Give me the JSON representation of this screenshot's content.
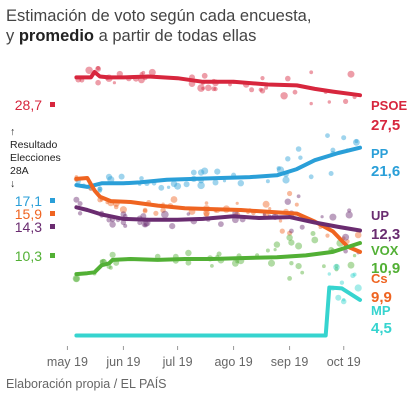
{
  "header": {
    "title_line1": "Estimación de voto según cada encuesta,",
    "title_pre": "y ",
    "title_bold": "promedio",
    "title_post": " a partir de todas ellas"
  },
  "source": "Elaboración propia / EL PAÍS",
  "result_note": {
    "arrow_up": "↑",
    "line1": "Resultado",
    "line2": "Elecciones",
    "line3": "28A",
    "arrow_down": "↓"
  },
  "chart_data": {
    "type": "line",
    "x_axis": {
      "ticks": [
        "may 19",
        "jun 19",
        "jul 19",
        "ago 19",
        "sep 19",
        "oct 19"
      ],
      "range": [
        "2019-04-28",
        "2019-10-10"
      ]
    },
    "y_axis": {
      "range": [
        0,
        31
      ]
    },
    "election_results": [
      {
        "party": "PSOE",
        "label": "28,7",
        "value": 28.7,
        "color": "#d7263d"
      },
      {
        "party": "PP",
        "label": "17,1",
        "value": 17.1,
        "color": "#2a9fd8"
      },
      {
        "party": "Cs",
        "label": "15,9",
        "value": 15.9,
        "color": "#ef6421"
      },
      {
        "party": "UP",
        "label": "14,3",
        "value": 14.3,
        "color": "#6a2c70"
      },
      {
        "party": "VOX",
        "label": "10,3",
        "value": 10.3,
        "color": "#52b035"
      }
    ],
    "series": [
      {
        "name": "PSOE",
        "final_label": "27,5",
        "color": "#d7263d",
        "points": [
          [
            "2019-05-06",
            29.5
          ],
          [
            "2019-05-14",
            29.5
          ],
          [
            "2019-05-16",
            30.1
          ],
          [
            "2019-05-19",
            29.6
          ],
          [
            "2019-05-24",
            29.5
          ],
          [
            "2019-06-01",
            29.5
          ],
          [
            "2019-06-15",
            29.6
          ],
          [
            "2019-07-01",
            29.4
          ],
          [
            "2019-07-15",
            29.0
          ],
          [
            "2019-08-01",
            29.0
          ],
          [
            "2019-08-20",
            28.7
          ],
          [
            "2019-09-05",
            28.6
          ],
          [
            "2019-09-15",
            28.2
          ],
          [
            "2019-09-25",
            27.9
          ],
          [
            "2019-10-10",
            27.5
          ]
        ]
      },
      {
        "name": "PP",
        "final_label": "21,6",
        "color": "#2a9fd8",
        "points": [
          [
            "2019-05-06",
            17.4
          ],
          [
            "2019-05-12",
            17.2
          ],
          [
            "2019-05-20",
            17.6
          ],
          [
            "2019-06-01",
            17.6
          ],
          [
            "2019-06-10",
            17.7
          ],
          [
            "2019-06-25",
            18.0
          ],
          [
            "2019-07-10",
            18.1
          ],
          [
            "2019-07-25",
            18.2
          ],
          [
            "2019-08-10",
            18.3
          ],
          [
            "2019-08-25",
            18.5
          ],
          [
            "2019-09-05",
            19.2
          ],
          [
            "2019-09-15",
            20.2
          ],
          [
            "2019-09-28",
            21.0
          ],
          [
            "2019-10-10",
            21.6
          ]
        ]
      },
      {
        "name": "Cs",
        "final_label": "9,9",
        "color": "#ef6421",
        "points": [
          [
            "2019-05-06",
            18.1
          ],
          [
            "2019-05-12",
            18.2
          ],
          [
            "2019-05-16",
            16.8
          ],
          [
            "2019-05-19",
            16.1
          ],
          [
            "2019-05-25",
            15.6
          ],
          [
            "2019-06-05",
            15.5
          ],
          [
            "2019-06-20",
            15.1
          ],
          [
            "2019-07-05",
            14.8
          ],
          [
            "2019-07-20",
            14.7
          ],
          [
            "2019-08-05",
            14.6
          ],
          [
            "2019-08-20",
            14.4
          ],
          [
            "2019-09-05",
            14.2
          ],
          [
            "2019-09-15",
            13.3
          ],
          [
            "2019-09-25",
            12.2
          ],
          [
            "2019-10-03",
            10.5
          ],
          [
            "2019-10-10",
            9.9
          ]
        ]
      },
      {
        "name": "UP",
        "final_label": "12,3",
        "color": "#6a2c70",
        "points": [
          [
            "2019-05-06",
            14.9
          ],
          [
            "2019-05-12",
            14.6
          ],
          [
            "2019-05-20",
            14.1
          ],
          [
            "2019-06-01",
            13.6
          ],
          [
            "2019-06-15",
            13.5
          ],
          [
            "2019-07-01",
            13.5
          ],
          [
            "2019-07-15",
            13.6
          ],
          [
            "2019-08-01",
            13.9
          ],
          [
            "2019-08-15",
            13.7
          ],
          [
            "2019-09-01",
            13.8
          ],
          [
            "2019-09-15",
            13.2
          ],
          [
            "2019-09-28",
            12.7
          ],
          [
            "2019-10-10",
            12.3
          ]
        ]
      },
      {
        "name": "VOX",
        "final_label": "10,9",
        "color": "#52b035",
        "points": [
          [
            "2019-05-06",
            7.4
          ],
          [
            "2019-05-12",
            7.5
          ],
          [
            "2019-05-16",
            7.6
          ],
          [
            "2019-05-20",
            8.4
          ],
          [
            "2019-05-24",
            8.6
          ],
          [
            "2019-05-26",
            9.0
          ],
          [
            "2019-06-05",
            9.1
          ],
          [
            "2019-06-20",
            9.0
          ],
          [
            "2019-07-05",
            9.1
          ],
          [
            "2019-07-20",
            9.1
          ],
          [
            "2019-08-05",
            9.2
          ],
          [
            "2019-08-25",
            9.3
          ],
          [
            "2019-09-10",
            9.5
          ],
          [
            "2019-09-25",
            9.9
          ],
          [
            "2019-10-10",
            10.9
          ]
        ]
      },
      {
        "name": "MP",
        "final_label": "4,5",
        "color": "#36d4cf",
        "points": [
          [
            "2019-05-06",
            0.5
          ],
          [
            "2019-09-21",
            0.5
          ],
          [
            "2019-09-23",
            5.9
          ],
          [
            "2019-09-30",
            5.8
          ],
          [
            "2019-10-10",
            4.5
          ]
        ]
      }
    ]
  }
}
